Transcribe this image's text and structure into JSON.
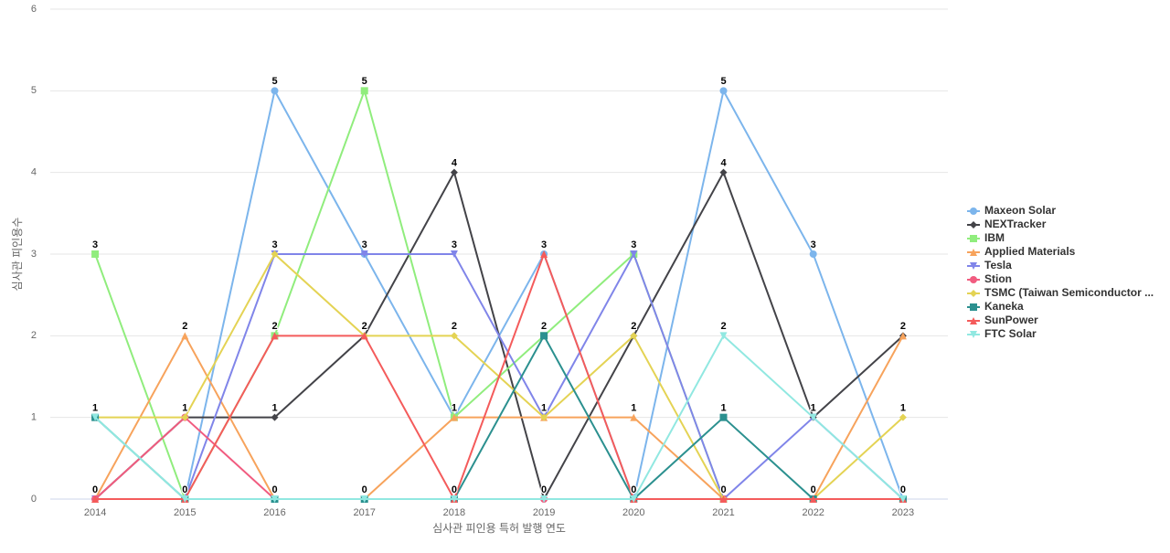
{
  "chart_data": {
    "type": "line",
    "x_label": "심사관 피인용 특허 발행 연도",
    "y_label": "심사관 피인용수",
    "categories": [
      "2014",
      "2015",
      "2016",
      "2017",
      "2018",
      "2019",
      "2020",
      "2021",
      "2022",
      "2023"
    ],
    "ylim": [
      0,
      6
    ],
    "yticks": [
      0,
      1,
      2,
      3,
      4,
      5,
      6
    ],
    "grid": true,
    "legend": "right",
    "series": [
      {
        "name": "Maxeon Solar",
        "color": "#7cb5ec",
        "marker": "circle",
        "values": [
          0,
          0,
          5,
          3,
          1,
          3,
          0,
          5,
          3,
          0
        ]
      },
      {
        "name": "NEXTracker",
        "color": "#434348",
        "marker": "diamond",
        "values": [
          0,
          1,
          1,
          2,
          4,
          0,
          2,
          4,
          1,
          2
        ]
      },
      {
        "name": "IBM",
        "color": "#90ed7d",
        "marker": "square",
        "values": [
          3,
          0,
          2,
          5,
          1,
          2,
          3,
          0,
          0,
          0
        ]
      },
      {
        "name": "Applied Materials",
        "color": "#f7a35c",
        "marker": "triangle",
        "values": [
          0,
          2,
          0,
          0,
          1,
          1,
          1,
          0,
          0,
          2
        ]
      },
      {
        "name": "Tesla",
        "color": "#8085e9",
        "marker": "triangle-down",
        "values": [
          0,
          0,
          3,
          3,
          3,
          1,
          3,
          0,
          1,
          0
        ]
      },
      {
        "name": "Stion",
        "color": "#f15c80",
        "marker": "circle",
        "values": [
          0,
          1,
          0,
          0,
          0,
          0,
          0,
          0,
          0,
          0
        ]
      },
      {
        "name": "TSMC (Taiwan Semiconductor ...",
        "color": "#e4d354",
        "marker": "diamond",
        "values": [
          1,
          1,
          3,
          2,
          2,
          1,
          2,
          0,
          0,
          1
        ]
      },
      {
        "name": "Kaneka",
        "color": "#2b908f",
        "marker": "square",
        "values": [
          1,
          0,
          0,
          0,
          0,
          2,
          0,
          1,
          0,
          0
        ]
      },
      {
        "name": "SunPower",
        "color": "#f45b5b",
        "marker": "triangle",
        "values": [
          0,
          0,
          2,
          2,
          0,
          3,
          0,
          0,
          0,
          0
        ]
      },
      {
        "name": "FTC Solar",
        "color": "#91e8e1",
        "marker": "triangle-down",
        "values": [
          1,
          0,
          0,
          0,
          0,
          0,
          0,
          2,
          1,
          0
        ]
      }
    ]
  }
}
